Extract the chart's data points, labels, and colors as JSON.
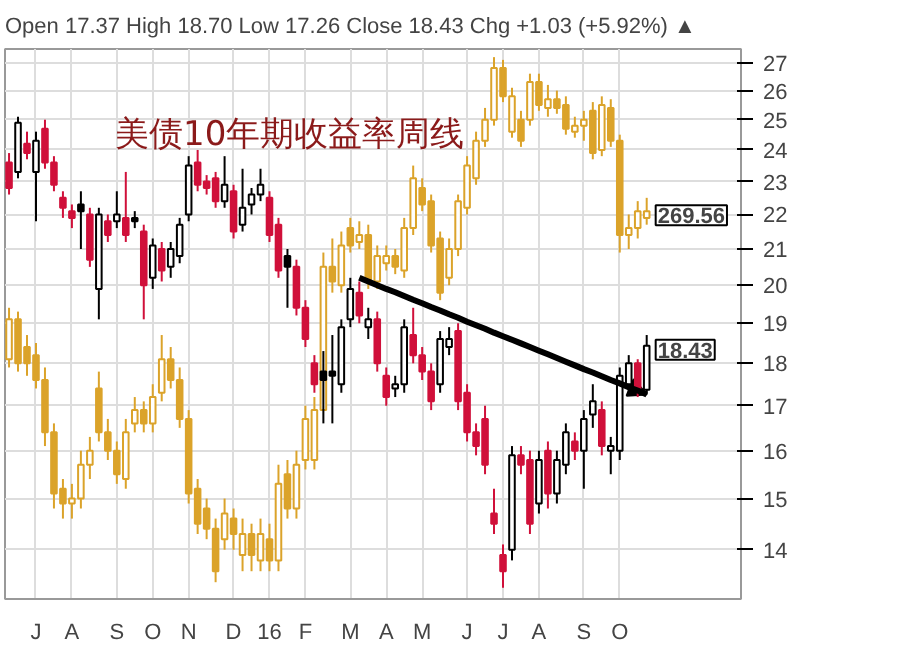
{
  "chart_data": {
    "type": "candlestick",
    "title": "美债10年期收益率周线",
    "subtitle": "Open 17.37  High 18.70  Low 17.26  Close 18.43  Chg +1.03 (+5.92%) ▲",
    "categories": [
      null,
      null,
      null,
      "J",
      null,
      null,
      null,
      "A",
      null,
      null,
      null,
      null,
      "S",
      null,
      null,
      null,
      "O",
      null,
      null,
      null,
      "N",
      null,
      null,
      null,
      null,
      "D",
      null,
      null,
      null,
      "16",
      null,
      null,
      null,
      "F",
      null,
      null,
      null,
      null,
      "M",
      null,
      null,
      null,
      "A",
      null,
      null,
      null,
      "M",
      null,
      null,
      null,
      null,
      "J",
      null,
      null,
      null,
      "J",
      null,
      null,
      null,
      "A",
      null,
      null,
      null,
      null,
      "S",
      null,
      null,
      null,
      "O",
      null,
      null,
      null
    ],
    "series": [
      {
        "color": "#dba32a",
        "colors": [
          "#ffffff",
          "#dba32a",
          "#dba32a",
          "#dba32a",
          "#dba32a",
          "#dba32a",
          "#dba32a",
          "#ffffff",
          "#ffffff",
          "#ffffff",
          "#dba32a",
          "#dba32a",
          "#dba32a",
          "#ffffff",
          "#ffffff",
          "#dba32a",
          "#ffffff",
          "#ffffff",
          "#dba32a",
          "#dba32a",
          "#dba32a",
          "#dba32a",
          "#dba32a",
          "#dba32a",
          "#ffffff",
          "#dba32a",
          "#ffffff",
          "#dba32a",
          "#ffffff",
          "#dba32a",
          "#ffffff",
          "#dba32a",
          "#ffffff",
          "#ffffff",
          "#ffffff",
          "#ffffff",
          "#dba32a",
          "#ffffff",
          "#dba32a",
          "#ffffff",
          "#dba32a",
          "#ffffff",
          "#ffffff",
          "#dba32a",
          "#ffffff",
          "#ffffff",
          "#dba32a",
          "#dba32a",
          "#dba32a",
          "#ffffff",
          "#ffffff",
          "#ffffff",
          "#ffffff",
          "#ffffff",
          "#ffffff",
          "#dba32a",
          "#ffffff",
          "#dba32a",
          "#ffffff",
          "#dba32a",
          "#ffffff",
          "#dba32a",
          "#dba32a",
          "#ffffff",
          "#ffffff",
          "#dba32a",
          "#ffffff",
          "#dba32a",
          "#dba32a",
          "#ffffff",
          "#ffffff",
          "#ffffff"
        ],
        "ohlc": [
          [
            18.1,
            19.4,
            17.9,
            19.1
          ],
          [
            19.1,
            19.3,
            17.8,
            18.0
          ],
          [
            18.4,
            18.7,
            17.7,
            18.0
          ],
          [
            18.2,
            18.5,
            17.4,
            17.6
          ],
          [
            17.6,
            17.9,
            16.1,
            16.4
          ],
          [
            16.4,
            16.6,
            14.8,
            15.1
          ],
          [
            15.2,
            15.4,
            14.6,
            14.9
          ],
          [
            14.9,
            15.3,
            14.6,
            15.0
          ],
          [
            15.0,
            16.0,
            14.8,
            15.7
          ],
          [
            15.7,
            16.3,
            15.4,
            16.0
          ],
          [
            17.4,
            17.8,
            16.2,
            16.4
          ],
          [
            16.4,
            16.7,
            15.8,
            16.0
          ],
          [
            16.0,
            16.2,
            15.3,
            15.5
          ],
          [
            15.4,
            16.7,
            15.2,
            16.4
          ],
          [
            16.6,
            17.2,
            16.4,
            16.9
          ],
          [
            16.9,
            17.1,
            16.4,
            16.6
          ],
          [
            16.6,
            17.5,
            16.4,
            17.2
          ],
          [
            17.3,
            18.7,
            17.1,
            18.1
          ],
          [
            18.1,
            18.4,
            17.4,
            17.6
          ],
          [
            17.6,
            17.9,
            16.5,
            16.7
          ],
          [
            16.7,
            16.9,
            14.9,
            15.1
          ],
          [
            15.2,
            15.4,
            14.3,
            14.5
          ],
          [
            14.8,
            15.0,
            14.2,
            14.4
          ],
          [
            14.4,
            14.6,
            13.4,
            13.6
          ],
          [
            14.2,
            15.0,
            14.0,
            14.7
          ],
          [
            14.6,
            14.8,
            14.0,
            14.3
          ],
          [
            13.9,
            14.6,
            13.6,
            14.3
          ],
          [
            14.3,
            14.5,
            13.6,
            13.9
          ],
          [
            13.8,
            14.6,
            13.6,
            14.3
          ],
          [
            14.2,
            14.5,
            13.6,
            13.8
          ],
          [
            13.8,
            15.7,
            13.6,
            15.3
          ],
          [
            15.5,
            15.8,
            14.6,
            14.8
          ],
          [
            14.8,
            16.0,
            14.6,
            15.7
          ],
          [
            15.8,
            17.0,
            15.6,
            16.7
          ],
          [
            15.8,
            17.2,
            15.6,
            16.9
          ],
          [
            16.9,
            20.9,
            16.9,
            20.5
          ],
          [
            20.5,
            21.3,
            19.8,
            20.1
          ],
          [
            20.0,
            21.5,
            19.8,
            21.1
          ],
          [
            21.6,
            21.9,
            20.9,
            21.1
          ],
          [
            21.2,
            21.8,
            21.0,
            21.4
          ],
          [
            21.4,
            21.7,
            19.9,
            20.1
          ],
          [
            20.1,
            21.1,
            19.9,
            20.8
          ],
          [
            20.6,
            21.1,
            20.4,
            20.8
          ],
          [
            20.8,
            21.0,
            20.3,
            20.5
          ],
          [
            20.4,
            21.9,
            20.2,
            21.6
          ],
          [
            21.6,
            23.5,
            21.4,
            23.1
          ],
          [
            22.8,
            23.1,
            22.1,
            22.3
          ],
          [
            22.4,
            22.6,
            20.9,
            21.1
          ],
          [
            21.3,
            21.5,
            19.6,
            19.8
          ],
          [
            20.2,
            21.3,
            20.0,
            21.0
          ],
          [
            21.0,
            22.6,
            20.8,
            22.4
          ],
          [
            22.2,
            23.8,
            22.0,
            23.5
          ],
          [
            23.1,
            24.6,
            22.9,
            24.3
          ],
          [
            24.3,
            25.4,
            24.1,
            25.0
          ],
          [
            25.0,
            27.2,
            24.8,
            26.8
          ],
          [
            26.8,
            27.1,
            25.6,
            25.8
          ],
          [
            24.6,
            26.1,
            24.4,
            25.8
          ],
          [
            25.0,
            25.3,
            24.1,
            24.3
          ],
          [
            25.0,
            26.6,
            24.8,
            26.3
          ],
          [
            26.3,
            26.6,
            25.3,
            25.5
          ],
          [
            25.4,
            26.2,
            25.1,
            25.7
          ],
          [
            25.7,
            26.0,
            25.2,
            25.4
          ],
          [
            25.5,
            25.8,
            24.5,
            24.7
          ],
          [
            24.6,
            25.1,
            24.4,
            24.8
          ],
          [
            24.8,
            25.3,
            24.3,
            25.0
          ],
          [
            25.3,
            25.6,
            23.7,
            23.9
          ],
          [
            24.0,
            25.8,
            23.8,
            25.5
          ],
          [
            25.4,
            25.7,
            24.1,
            24.3
          ],
          [
            24.3,
            24.5,
            20.9,
            21.4
          ],
          [
            21.4,
            22.0,
            21.0,
            21.6
          ],
          [
            21.6,
            22.4,
            21.3,
            22.1
          ],
          [
            21.9,
            22.5,
            21.7,
            22.1
          ]
        ]
      },
      {
        "color": "#000000",
        "colors": [
          "#d0103a",
          "#ffffff",
          "#d0103a",
          "#ffffff",
          "#d0103a",
          "#d0103a",
          "#d0103a",
          "#d0103a",
          "#000000",
          "#d0103a",
          "#ffffff",
          "#d0103a",
          "#ffffff",
          "#d0103a",
          "#000000",
          "#d0103a",
          "#ffffff",
          "#d0103a",
          "#ffffff",
          "#ffffff",
          "#ffffff",
          "#d0103a",
          "#d0103a",
          "#d0103a",
          "#ffffff",
          "#d0103a",
          "#ffffff",
          "#ffffff",
          "#ffffff",
          "#d0103a",
          "#d0103a",
          "#000000",
          "#d0103a",
          "#d0103a",
          "#d0103a",
          "#000000",
          "#000000",
          "#ffffff",
          "#ffffff",
          "#d0103a",
          "#ffffff",
          "#d0103a",
          "#d0103a",
          "#ffffff",
          "#ffffff",
          "#d0103a",
          "#d0103a",
          "#d0103a",
          "#ffffff",
          "#ffffff",
          "#d0103a",
          "#d0103a",
          "#d0103a",
          "#d0103a",
          "#d0103a",
          "#d0103a",
          "#ffffff",
          "#d0103a",
          "#d0103a",
          "#ffffff",
          "#d0103a",
          "#ffffff",
          "#ffffff",
          "#d0103a",
          "#ffffff",
          "#ffffff",
          "#d0103a",
          "#ffffff",
          "#ffffff",
          "#ffffff",
          "#d0103a",
          "#ffffff"
        ],
        "ohlc": [
          [
            23.6,
            23.9,
            22.6,
            22.8
          ],
          [
            23.3,
            25.1,
            23.1,
            24.9
          ],
          [
            24.2,
            24.6,
            23.7,
            23.9
          ],
          [
            23.3,
            24.6,
            21.8,
            24.3
          ],
          [
            24.7,
            25.0,
            23.4,
            23.6
          ],
          [
            23.6,
            23.8,
            22.7,
            22.9
          ],
          [
            22.5,
            22.7,
            21.9,
            22.2
          ],
          [
            22.1,
            22.3,
            21.6,
            21.9
          ],
          [
            22.1,
            22.7,
            21.0,
            22.3
          ],
          [
            22.0,
            22.2,
            20.5,
            20.7
          ],
          [
            19.9,
            22.2,
            19.1,
            22.0
          ],
          [
            21.8,
            22.0,
            21.2,
            21.4
          ],
          [
            21.8,
            22.7,
            21.6,
            22.0
          ],
          [
            21.9,
            23.3,
            21.2,
            21.4
          ],
          [
            21.8,
            22.1,
            21.6,
            21.9
          ],
          [
            21.5,
            21.7,
            19.1,
            20.0
          ],
          [
            20.2,
            21.3,
            19.9,
            21.1
          ],
          [
            21.0,
            21.2,
            20.1,
            20.4
          ],
          [
            20.5,
            21.2,
            20.2,
            21.0
          ],
          [
            20.8,
            21.9,
            20.6,
            21.7
          ],
          [
            22.0,
            23.8,
            21.8,
            23.5
          ],
          [
            23.6,
            24.0,
            22.7,
            22.9
          ],
          [
            23.0,
            23.2,
            22.6,
            22.8
          ],
          [
            23.1,
            23.3,
            22.2,
            22.4
          ],
          [
            22.4,
            23.8,
            22.2,
            22.9
          ],
          [
            22.7,
            22.9,
            21.3,
            21.5
          ],
          [
            21.7,
            23.4,
            21.5,
            22.2
          ],
          [
            22.3,
            22.8,
            22.0,
            22.6
          ],
          [
            22.6,
            23.4,
            22.4,
            22.9
          ],
          [
            22.5,
            22.7,
            21.2,
            21.4
          ],
          [
            21.7,
            21.9,
            20.2,
            20.4
          ],
          [
            20.5,
            21.0,
            19.4,
            20.8
          ],
          [
            20.5,
            20.7,
            19.2,
            19.4
          ],
          [
            19.4,
            19.6,
            18.4,
            18.6
          ],
          [
            18.0,
            18.2,
            17.3,
            17.5
          ],
          [
            17.6,
            18.3,
            16.6,
            17.8
          ],
          [
            17.7,
            18.7,
            16.6,
            17.8
          ],
          [
            17.5,
            19.1,
            17.3,
            18.9
          ],
          [
            19.1,
            20.2,
            18.9,
            19.9
          ],
          [
            19.8,
            20.1,
            19.0,
            19.2
          ],
          [
            18.9,
            19.4,
            18.6,
            19.1
          ],
          [
            19.1,
            19.3,
            17.8,
            18.0
          ],
          [
            17.7,
            17.9,
            17.0,
            17.2
          ],
          [
            17.4,
            17.7,
            17.2,
            17.5
          ],
          [
            17.5,
            19.1,
            17.3,
            18.9
          ],
          [
            18.7,
            19.4,
            18.0,
            18.2
          ],
          [
            18.2,
            18.4,
            17.6,
            17.8
          ],
          [
            17.8,
            18.0,
            16.9,
            17.1
          ],
          [
            17.5,
            18.8,
            17.3,
            18.6
          ],
          [
            18.4,
            18.9,
            18.2,
            18.6
          ],
          [
            18.8,
            19.0,
            16.9,
            17.1
          ],
          [
            17.3,
            17.5,
            16.2,
            16.4
          ],
          [
            16.4,
            16.6,
            15.9,
            16.1
          ],
          [
            16.7,
            17.0,
            15.5,
            15.7
          ],
          [
            14.7,
            15.2,
            14.3,
            14.5
          ],
          [
            13.9,
            14.1,
            13.3,
            13.6
          ],
          [
            14.0,
            16.1,
            13.8,
            15.9
          ],
          [
            15.9,
            16.1,
            15.5,
            15.7
          ],
          [
            15.8,
            16.0,
            14.3,
            14.5
          ],
          [
            14.9,
            16.0,
            14.7,
            15.8
          ],
          [
            16.0,
            16.2,
            14.8,
            15.1
          ],
          [
            15.1,
            16.0,
            14.9,
            15.8
          ],
          [
            15.7,
            16.6,
            15.5,
            16.4
          ],
          [
            16.2,
            16.4,
            15.8,
            16.0
          ],
          [
            16.0,
            16.9,
            15.2,
            16.7
          ],
          [
            16.8,
            17.5,
            16.5,
            17.1
          ],
          [
            16.9,
            17.1,
            15.9,
            16.1
          ],
          [
            16.0,
            16.3,
            15.5,
            16.1
          ],
          [
            16.0,
            17.9,
            15.8,
            17.7
          ],
          [
            17.5,
            18.2,
            17.3,
            18.0
          ],
          [
            18.0,
            18.1,
            17.2,
            17.4
          ],
          [
            17.37,
            18.7,
            17.26,
            18.43
          ]
        ]
      },
      {
        "type": "line",
        "color": "#000000",
        "values": [
          null,
          null,
          null,
          null,
          null,
          null,
          null,
          null,
          null,
          null,
          null,
          null,
          null,
          null,
          null,
          null,
          null,
          null,
          null,
          null,
          null,
          null,
          null,
          null,
          null,
          null,
          null,
          null,
          null,
          null,
          null,
          null,
          null,
          null,
          null,
          null,
          null,
          null,
          null,
          20.2,
          20.1,
          20.0,
          19.9,
          19.81,
          19.71,
          19.61,
          19.52,
          19.42,
          19.33,
          19.23,
          19.14,
          19.04,
          18.95,
          18.86,
          18.76,
          18.67,
          18.58,
          18.49,
          18.4,
          18.31,
          18.22,
          18.13,
          18.04,
          17.95,
          17.86,
          17.78,
          17.69,
          17.6,
          17.52,
          17.43,
          17.35,
          17.26
        ]
      }
    ],
    "ylim": [
      13.1,
      27.5
    ],
    "yticks": [
      14,
      15,
      16,
      17,
      18,
      19,
      20,
      21,
      22,
      23,
      24,
      25,
      26,
      27
    ],
    "log": "y",
    "grid": true,
    "annotations": [
      "269.56",
      "18.43"
    ]
  }
}
